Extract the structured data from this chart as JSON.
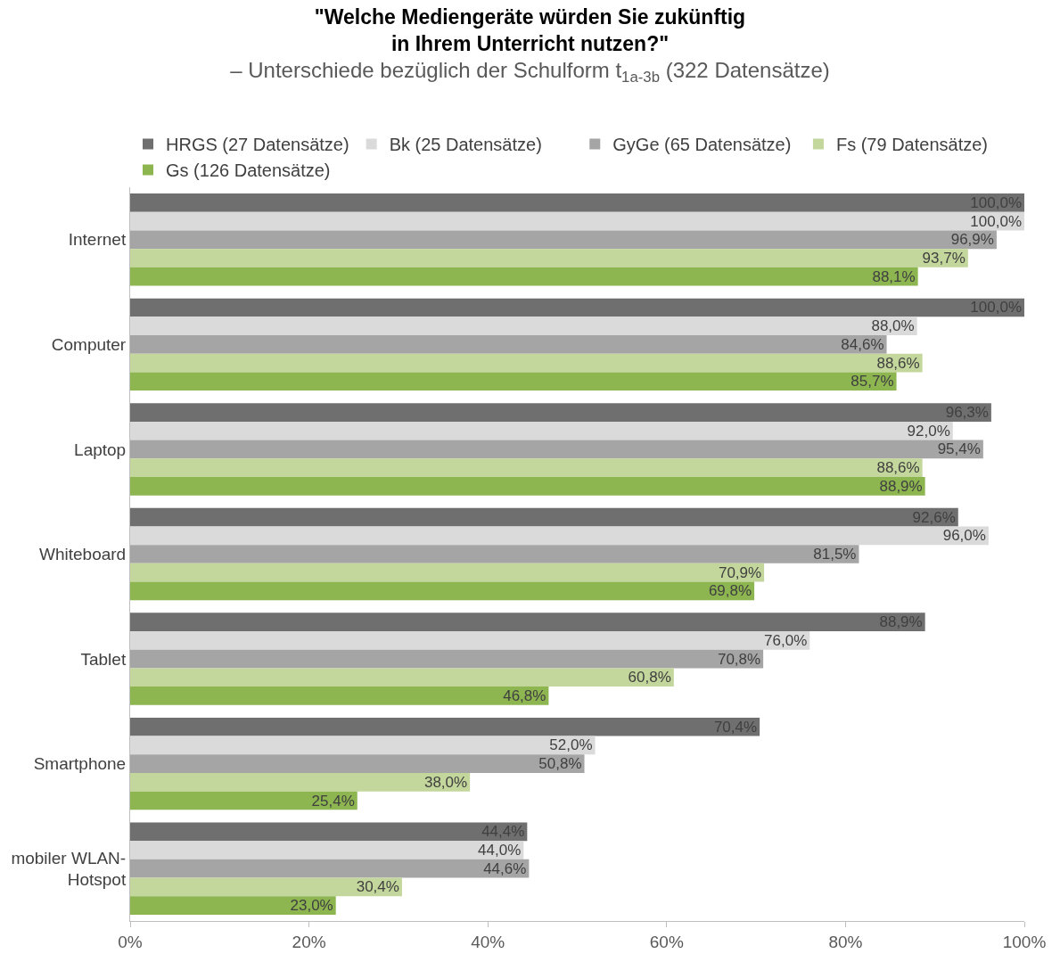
{
  "chart_data": {
    "type": "bar",
    "orientation": "horizontal",
    "title": "\"Welche Mediengeräte würden Sie zukünftig\nin Ihrem Unterricht nutzen?\"",
    "subtitle": "– Unterschiede bezüglich der Schulform t$_{1a-3b}$ (322 Datensätze)",
    "categories": [
      "Internet",
      "Computer",
      "Laptop",
      "Whiteboard",
      "Tablet",
      "Smartphone",
      "mobiler WLAN-\nHotspot"
    ],
    "series": [
      {
        "name": "HRGS (27 Datensätze)",
        "color": "#6f6f6f",
        "values": [
          100.0,
          100.0,
          96.3,
          92.6,
          88.9,
          70.4,
          44.4
        ],
        "value_labels": [
          "100,0%",
          "100,0%",
          "96,3%",
          "92,6%",
          "88,9%",
          "70,4%",
          "44,4%"
        ]
      },
      {
        "name": "Bk (25 Datensätze)",
        "color": "#dadada",
        "values": [
          100.0,
          88.0,
          92.0,
          96.0,
          76.0,
          52.0,
          44.0
        ],
        "value_labels": [
          "100,0%",
          "88,0%",
          "92,0%",
          "96,0%",
          "76,0%",
          "52,0%",
          "44,0%"
        ]
      },
      {
        "name": "GyGe (65 Datensätze)",
        "color": "#a5a5a5",
        "values": [
          96.9,
          84.6,
          95.4,
          81.5,
          70.8,
          50.8,
          44.6
        ],
        "value_labels": [
          "96,9%",
          "84,6%",
          "95,4%",
          "81,5%",
          "70,8%",
          "50,8%",
          "44,6%"
        ]
      },
      {
        "name": "Fs (79 Datensätze)",
        "color": "#c3d69b",
        "values": [
          93.7,
          88.6,
          88.6,
          70.9,
          60.8,
          38.0,
          30.4
        ],
        "value_labels": [
          "93,7%",
          "88,6%",
          "88,6%",
          "70,9%",
          "60,8%",
          "38,0%",
          "30,4%"
        ]
      },
      {
        "name": "Gs (126 Datensätze)",
        "color": "#8db550",
        "values": [
          88.1,
          85.7,
          88.9,
          69.8,
          46.8,
          25.4,
          23.0
        ],
        "value_labels": [
          "88,1%",
          "85,7%",
          "88,9%",
          "69,8%",
          "46,8%",
          "25,4%",
          "23,0%"
        ]
      }
    ],
    "xlim": [
      0,
      100
    ],
    "xticks": [
      {
        "value": 0,
        "label": "0%"
      },
      {
        "value": 20,
        "label": "20%"
      },
      {
        "value": 40,
        "label": "40%"
      },
      {
        "value": 60,
        "label": "60%"
      },
      {
        "value": 80,
        "label": "80%"
      },
      {
        "value": 100,
        "label": "100%"
      }
    ],
    "legend": "top"
  }
}
